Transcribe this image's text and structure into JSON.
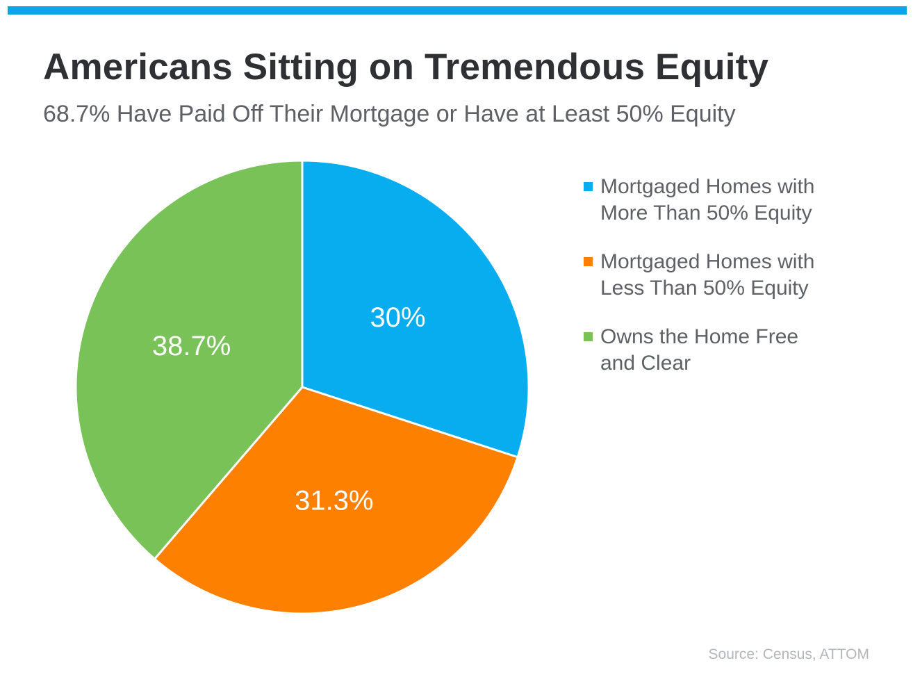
{
  "page": {
    "accent_color": "#0aa6e6",
    "title": "Americans Sitting on Tremendous Equity",
    "subtitle": "68.7% Have Paid Off Their Mortgage or Have at Least 50% Equity",
    "source": "Source: Census, ATTOM"
  },
  "chart_data": {
    "type": "pie",
    "title": "Americans Sitting on Tremendous Equity",
    "subtitle": "68.7% Have Paid Off Their Mortgage or Have at Least 50% Equity",
    "legend_position": "right",
    "slices": [
      {
        "label": "Mortgaged Homes with More Than 50% Equity",
        "value": 30,
        "display": "30%",
        "color": "#07adee"
      },
      {
        "label": "Mortgaged Homes with Less Than 50% Equity",
        "value": 31.3,
        "display": "31.3%",
        "color": "#fe8001"
      },
      {
        "label": "Owns the Home Free and Clear",
        "value": 38.7,
        "display": "38.7%",
        "color": "#78c257"
      }
    ]
  },
  "legend": {
    "items": [
      {
        "label": "Mortgaged Homes with\nMore Than 50% Equity",
        "color": "#07adee"
      },
      {
        "label": "Mortgaged Homes with\nLess Than 50% Equity",
        "color": "#fe8001"
      },
      {
        "label": "Owns the Home Free\nand Clear",
        "color": "#78c257"
      }
    ]
  }
}
